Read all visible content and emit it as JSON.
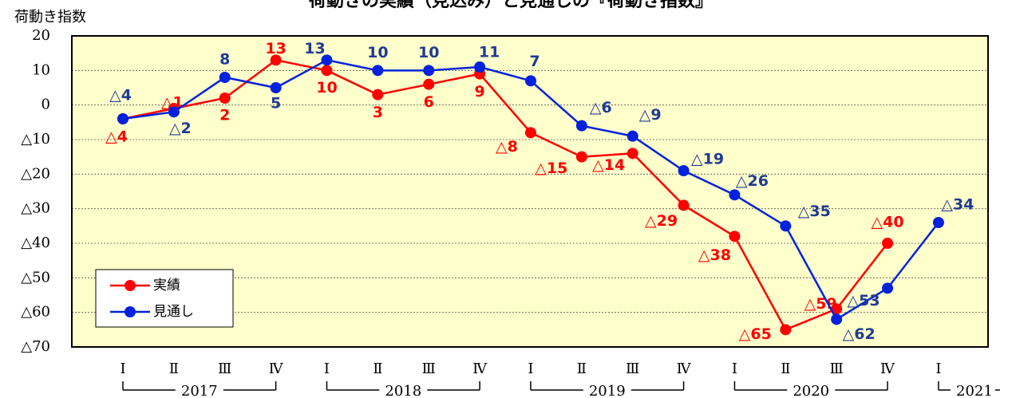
{
  "chart_data": {
    "type": "line",
    "title": "荷動きの実績（見込み）と見通しの『荷動き指数』",
    "y_label": "荷動き指数",
    "categories": [
      "Ⅰ",
      "Ⅱ",
      "Ⅲ",
      "Ⅳ",
      "Ⅰ",
      "Ⅱ",
      "Ⅲ",
      "Ⅳ",
      "Ⅰ",
      "Ⅱ",
      "Ⅲ",
      "Ⅳ",
      "Ⅰ",
      "Ⅱ",
      "Ⅲ",
      "Ⅳ",
      "Ⅰ"
    ],
    "x_groups": [
      "2017",
      "2018",
      "2019",
      "2020",
      "2021"
    ],
    "series": [
      {
        "name": "実績",
        "color": "#ff0000",
        "values": [
          -4,
          -1,
          2,
          13,
          10,
          3,
          6,
          9,
          -8,
          -15,
          -14,
          -29,
          -38,
          -65,
          -59,
          -40,
          null
        ],
        "value_labels": [
          "△4",
          "△1",
          "2",
          "13",
          "10",
          "3",
          "6",
          "9",
          "△8",
          "△15",
          "△14",
          "△29",
          "△38",
          "△65",
          "△59",
          "△40",
          null
        ]
      },
      {
        "name": "見通し",
        "color": "#0022dd",
        "values": [
          -4,
          -2,
          8,
          5,
          13,
          10,
          10,
          11,
          7,
          -6,
          -9,
          -19,
          -26,
          -35,
          -62,
          -53,
          -34
        ],
        "value_labels": [
          "△4",
          "△2",
          "8",
          "5",
          "13",
          "10",
          "10",
          "11",
          "7",
          "△6",
          "△9",
          "△19",
          "△26",
          "△35",
          "△62",
          "△53",
          "△34"
        ]
      }
    ],
    "ylim": [
      -70,
      20
    ],
    "yticks": [
      20,
      10,
      0,
      {
        "value": -10,
        "label": "△10"
      },
      {
        "value": -20,
        "label": "△20"
      },
      {
        "value": -30,
        "label": "△30"
      },
      {
        "value": -40,
        "label": "△40"
      },
      {
        "value": -50,
        "label": "△50"
      },
      {
        "value": -60,
        "label": "△60"
      },
      {
        "value": -70,
        "label": "△70"
      }
    ],
    "grid": true,
    "legend": "lower left"
  }
}
